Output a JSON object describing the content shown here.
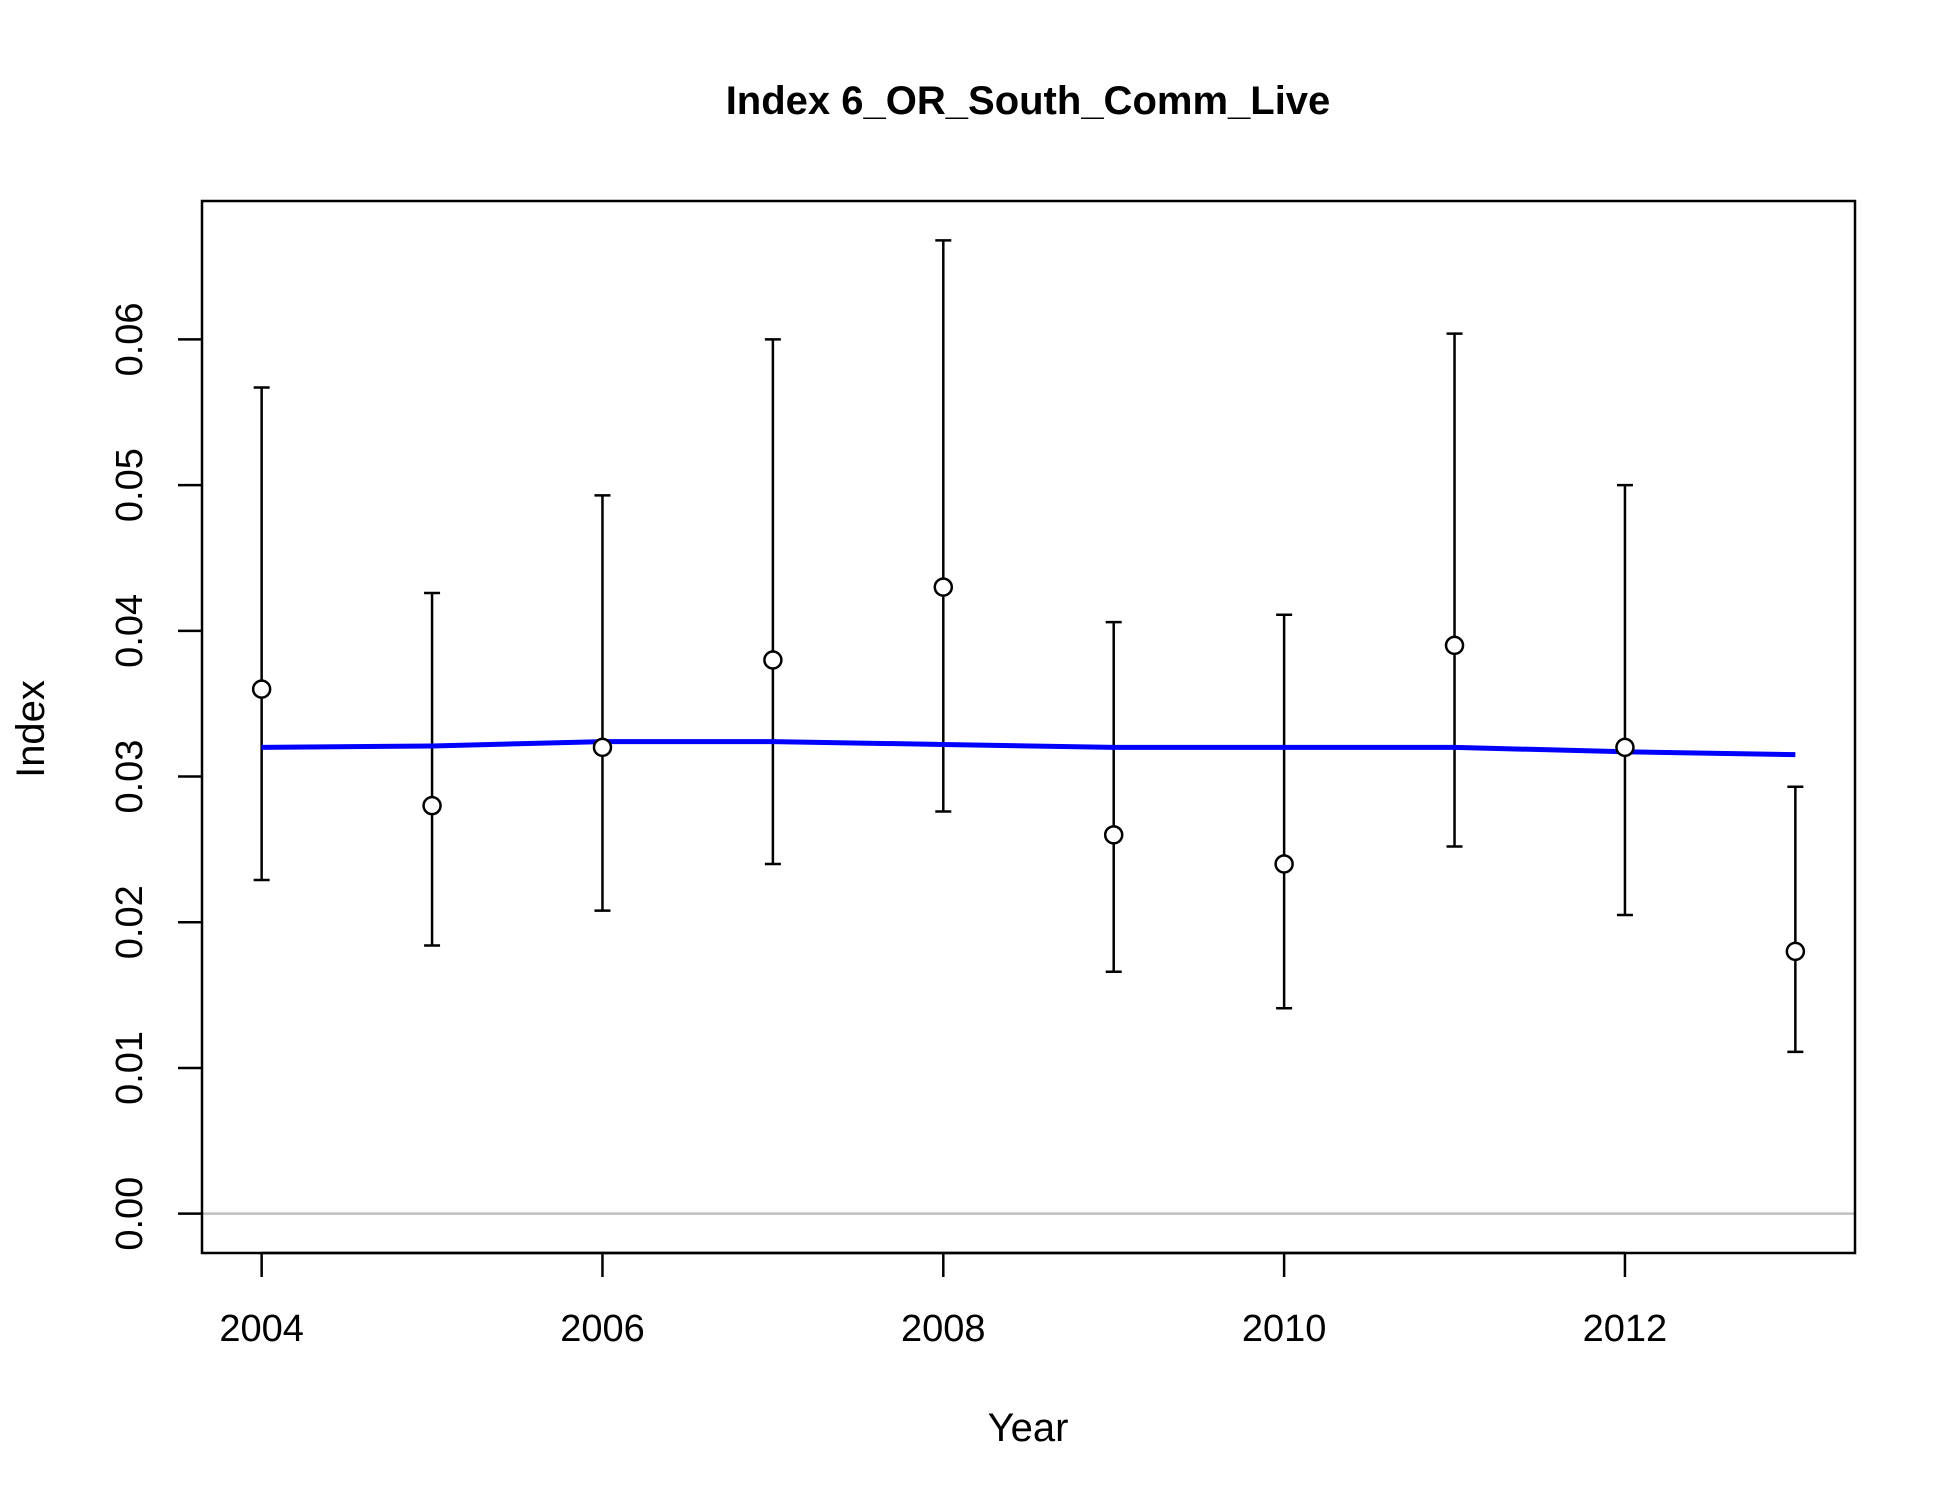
{
  "chart_data": {
    "type": "scatter",
    "title": "Index 6_OR_South_Comm_Live",
    "xlabel": "Year",
    "ylabel": "Index",
    "xlim": [
      2003.65,
      2013.35
    ],
    "ylim": [
      -0.0027,
      0.0695
    ],
    "xticks": [
      2004,
      2006,
      2008,
      2010,
      2012
    ],
    "yticks": [
      0.0,
      0.01,
      0.02,
      0.03,
      0.04,
      0.05,
      0.06
    ],
    "ytick_labels": [
      "0.00",
      "0.01",
      "0.02",
      "0.03",
      "0.04",
      "0.05",
      "0.06"
    ],
    "grid": false,
    "reference_line": {
      "y": 0.0,
      "color": "#bebebe"
    },
    "points": {
      "x": [
        2004,
        2005,
        2006,
        2007,
        2008,
        2009,
        2010,
        2011,
        2012,
        2013
      ],
      "y": [
        0.036,
        0.028,
        0.032,
        0.038,
        0.043,
        0.026,
        0.024,
        0.039,
        0.032,
        0.018
      ],
      "lower": [
        0.0229,
        0.0184,
        0.0208,
        0.024,
        0.0276,
        0.0166,
        0.0141,
        0.0252,
        0.0205,
        0.0111
      ],
      "upper": [
        0.0567,
        0.0426,
        0.0493,
        0.06,
        0.0668,
        0.0406,
        0.0411,
        0.0604,
        0.05,
        0.0293
      ],
      "color": "#000000"
    },
    "fit_line": {
      "x": [
        2004,
        2005,
        2006,
        2007,
        2008,
        2009,
        2010,
        2011,
        2012,
        2013
      ],
      "y": [
        0.032,
        0.0321,
        0.0324,
        0.0324,
        0.0322,
        0.032,
        0.032,
        0.032,
        0.0317,
        0.0315
      ],
      "color": "#0000ff"
    }
  }
}
